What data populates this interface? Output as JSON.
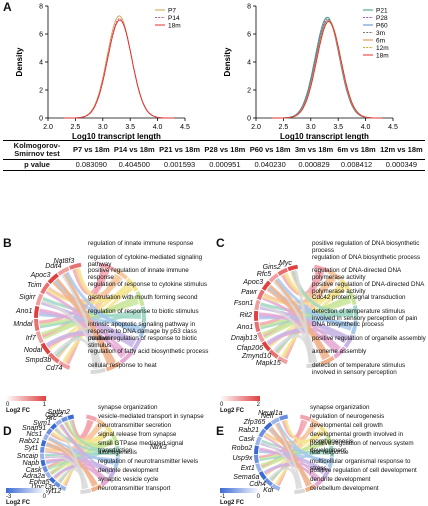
{
  "panel_labels": {
    "a": "A",
    "b": "B",
    "c": "C",
    "d": "D",
    "e": "E"
  },
  "chart_data": [
    {
      "type": "line",
      "xlabel": "Log10 transcript length",
      "ylabel": "Density",
      "xticks": [
        "2.0",
        "2.5",
        "3.0",
        "3.5",
        "4.0",
        "4.5"
      ],
      "yticks": [
        "0",
        "2",
        "4",
        "6",
        "8"
      ],
      "xlim": [
        2.0,
        4.5
      ],
      "ylim": [
        0,
        8
      ],
      "legend": "top-right",
      "peak_x": 3.3,
      "series": [
        {
          "name": "P7",
          "color": "#d4a24a",
          "peak": 7.3
        },
        {
          "name": "P14",
          "color": "#c45a9a",
          "peak": 7.1
        },
        {
          "name": "18m",
          "color": "#e03030",
          "peak": 7.0
        }
      ]
    },
    {
      "type": "line",
      "xlabel": "Log10 transcript length",
      "ylabel": "Density",
      "xticks": [
        "2.0",
        "2.5",
        "3.0",
        "3.5",
        "4.0",
        "4.5"
      ],
      "yticks": [
        "0",
        "2",
        "4",
        "6",
        "8"
      ],
      "xlim": [
        2.0,
        4.5
      ],
      "ylim": [
        0,
        8
      ],
      "legend": "top-right",
      "peak_x": 3.3,
      "series": [
        {
          "name": "P21",
          "color": "#3a9a7a",
          "peak": 7.2
        },
        {
          "name": "P28",
          "color": "#9b59b6",
          "peak": 7.1
        },
        {
          "name": "P60",
          "color": "#5a8ad4",
          "peak": 7.0
        },
        {
          "name": "3m",
          "color": "#777777",
          "peak": 7.0
        },
        {
          "name": "6m",
          "color": "#e08840",
          "peak": 6.9
        },
        {
          "name": "12m",
          "color": "#c0b030",
          "peak": 7.0
        },
        {
          "name": "18m",
          "color": "#e03030",
          "peak": 6.9
        }
      ]
    }
  ],
  "ks_table": {
    "row_label_1": "Kolmogorov-Smirnov test",
    "headers": [
      "P7 vs 18m",
      "P14 vs 18m",
      "P21 vs 18m",
      "P28 vs 18m",
      "P60 vs 18m",
      "3m vs 18m",
      "6m vs 18m",
      "12m vs 18m"
    ],
    "row_label_2": "p value",
    "pvalues": [
      "0.083090",
      "0.404500",
      "0.001593",
      "0.000951",
      "0.040230",
      "0.000829",
      "0.008412",
      "0.000349"
    ]
  },
  "chord_panels": {
    "b": {
      "genes": [
        "Cd74",
        "Smpd3b",
        "Nodal",
        "Irf7",
        "Mndal",
        "Ano1",
        "Sigirr",
        "Tcim",
        "Apoc3",
        "Ddit4",
        "Nat8f3"
      ],
      "terms": [
        "regulation of innate immune response",
        "regulation of cytokine-mediated signaling pathway",
        "positive regulation of innate immune response",
        "regulation of response to cytokine stimulus",
        "gastrulation with mouth forming second",
        "regulation of response to biotic stimulus",
        "intrinsic apoptotic signaling pathway in response to DNA damage by p53 class mediator",
        "positive regulation of response to biotic stimulus",
        "regulation of fatty acid biosynthetic process",
        "cellular response to heat"
      ],
      "legend_title": "Log2 FC",
      "legend_min": "0",
      "legend_max": "1",
      "colors": [
        "#f4a6b0",
        "#f7c8a0",
        "#f5e48e",
        "#c9e59a",
        "#9fd8c4",
        "#a7c9ec",
        "#c6b4e4",
        "#e5a9d4",
        "#f0b08a",
        "#d9d9d9"
      ]
    },
    "c": {
      "genes": [
        "Mapk15",
        "Zmynd10",
        "Cfap206",
        "Dnajb13",
        "Ano1",
        "Rit2",
        "Fson1",
        "Pawr",
        "Apoc3",
        "Rfc5",
        "Gins2",
        "Myc"
      ],
      "terms": [
        "positive regulation of DNA biosynthetic process",
        "regulation of DNA biosynthetic process",
        "regulation of DNA-directed DNA polymerase activity",
        "positive regulation of DNA-directed DNA polymerase activity",
        "Cdc42 protein signal transduction",
        "detection of temperature stimulus involved in sensory perception of pain",
        "DNA biosynthetic process",
        "positive regulation of organelle assembly",
        "axoneme assembly",
        "detection of temperature stimulus involved in sensory perception"
      ],
      "legend_title": "Log2 FC",
      "legend_min": "0",
      "legend_max": "2",
      "colors": [
        "#f4a6b0",
        "#f7c8a0",
        "#f5e48e",
        "#c9e59a",
        "#9fd8c4",
        "#a7c9ec",
        "#c6b4e4",
        "#e5a9d4",
        "#f0b08a",
        "#d9d9d9"
      ]
    },
    "d": {
      "genes": [
        "Syt12",
        "Unc13c",
        "Epha5",
        "Adra2a",
        "Cask",
        "Napb",
        "Sncaip",
        "Syt1",
        "Rab21",
        "Ncs1",
        "Snap91",
        "Sym1",
        "Arc",
        "Cplx2",
        "Sptbn2"
      ],
      "terms": [
        "synapse organization",
        "vesicle-mediated transport in synapse",
        "neurotransmitter secretion",
        "signal release from synapse",
        "small GTPase mediated signal transduction",
        "axonogenesis",
        "regulation of neurotransmitter levels",
        "dendrite development",
        "synaptic vesicle cycle",
        "neurotransmitter transport"
      ],
      "extra_gene": "Ntrk3",
      "legend_title": "Log2 FC",
      "legend_min": "-3",
      "legend_max": "0",
      "colors": [
        "#f4a6b0",
        "#f7c8a0",
        "#f5e48e",
        "#c9e59a",
        "#9fd8c4",
        "#a7c9ec",
        "#c6b4e4",
        "#e5a9d4",
        "#f0b08a",
        "#d9d9d9"
      ]
    },
    "e": {
      "genes": [
        "Kdr",
        "Cdh4",
        "Sema6a",
        "Ext1",
        "Usp9x",
        "Robo2",
        "Cask",
        "Rab21",
        "Zfp365",
        "Nefl",
        "Neurl1a"
      ],
      "terms": [
        "synapse organization",
        "regulation of neurogenesis",
        "developmental cell growth",
        "developmental growth involved in morphogenesis",
        "positive regulation of nervous system development",
        "fear response",
        "multicellular organismal response to stress",
        "positive regulation of cell development",
        "dendrite development",
        "cerebellum development"
      ],
      "legend_title": "Log2 FC",
      "legend_min": "-1",
      "legend_max": "0",
      "colors": [
        "#f4a6b0",
        "#f7c8a0",
        "#f5e48e",
        "#c9e59a",
        "#9fd8c4",
        "#a7c9ec",
        "#c6b4e4",
        "#e5a9d4",
        "#f0b08a",
        "#d9d9d9"
      ]
    }
  }
}
